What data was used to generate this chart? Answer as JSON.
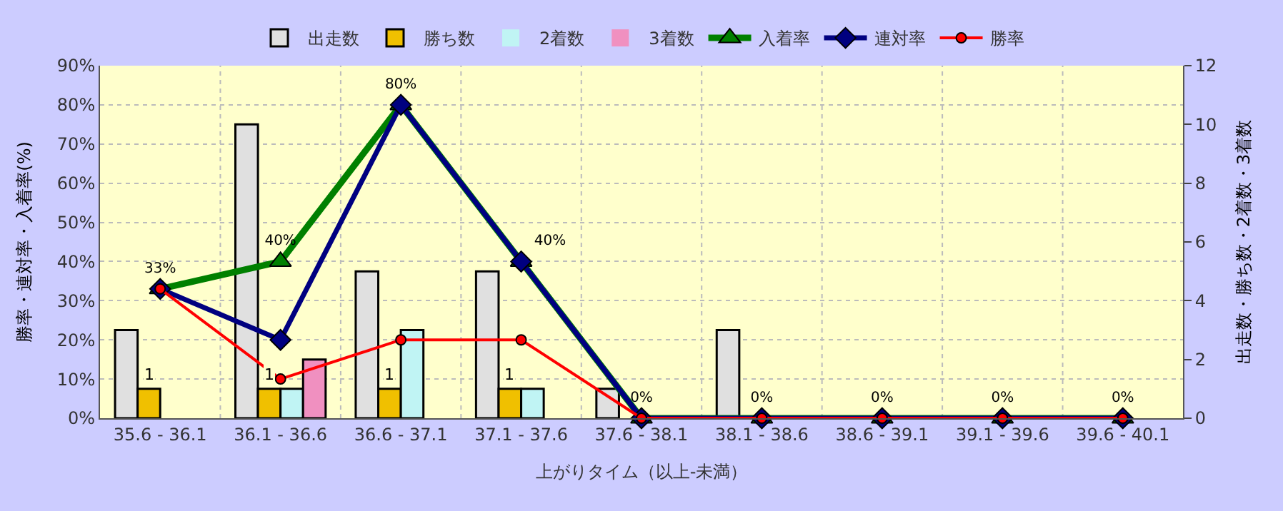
{
  "chart_data": {
    "type": "bar",
    "xlabel": "上がりタイム（以上-未満）",
    "ylabel": "勝率・連対率・入着率(%)",
    "y2label": "出走数・勝ち数・2着数・3着数",
    "categories": [
      "35.6 - 36.1",
      "36.1 - 36.6",
      "36.6 - 37.1",
      "37.1 - 37.6",
      "37.6 - 38.1",
      "38.1 - 38.6",
      "38.6 - 39.1",
      "39.1 - 39.6",
      "39.6 - 40.1"
    ],
    "series": [
      {
        "name": "出走数",
        "axis": "y2",
        "color": "#e0e0e0",
        "values": [
          3,
          10,
          5,
          5,
          1,
          3,
          0,
          0,
          0
        ]
      },
      {
        "name": "勝ち数",
        "axis": "y2",
        "color": "#f0c000",
        "values": [
          1,
          1,
          1,
          1,
          0,
          0,
          0,
          0,
          0
        ],
        "value_labels": [
          "1",
          "1",
          "1",
          "1",
          null,
          null,
          null,
          null,
          null
        ]
      },
      {
        "name": "2着数",
        "axis": "y2",
        "color": "#c0f4f4",
        "values": [
          0,
          1,
          3,
          1,
          0,
          0,
          0,
          0,
          0
        ]
      },
      {
        "name": "3着数",
        "axis": "y2",
        "color": "#f090c0",
        "values": [
          0,
          2,
          0,
          0,
          0,
          0,
          0,
          0,
          0
        ]
      },
      {
        "name": "入着率",
        "type": "line",
        "color": "#008000",
        "marker": "triangle",
        "values": [
          33,
          40,
          80,
          40,
          0,
          0,
          0,
          0,
          0
        ],
        "value_labels": [
          "33%",
          "40%",
          "80%",
          "40%",
          "0%",
          "0%",
          "0%",
          "0%",
          "0%"
        ]
      },
      {
        "name": "連対率",
        "type": "line",
        "color": "#000080",
        "marker": "diamond",
        "values": [
          33,
          20,
          80,
          40,
          0,
          0,
          0,
          0,
          0
        ]
      },
      {
        "name": "勝率",
        "type": "line",
        "color": "#ff0000",
        "marker": "circle",
        "values": [
          33,
          10,
          20,
          20,
          0,
          0,
          0,
          0,
          0
        ]
      }
    ],
    "ylim": [
      0,
      90
    ],
    "yticks": [
      {
        "value": 0,
        "label": "0%"
      },
      {
        "value": 10,
        "label": "10%"
      },
      {
        "value": 20,
        "label": "20%"
      },
      {
        "value": 30,
        "label": "30%"
      },
      {
        "value": 40,
        "label": "40%"
      },
      {
        "value": 50,
        "label": "50%"
      },
      {
        "value": 60,
        "label": "60%"
      },
      {
        "value": 70,
        "label": "70%"
      },
      {
        "value": 80,
        "label": "80%"
      },
      {
        "value": 90,
        "label": "90%"
      }
    ],
    "y2lim": [
      0,
      12
    ],
    "y2ticks": [
      0,
      2,
      4,
      6,
      8,
      10,
      12
    ],
    "grid": true,
    "legend": "top"
  }
}
